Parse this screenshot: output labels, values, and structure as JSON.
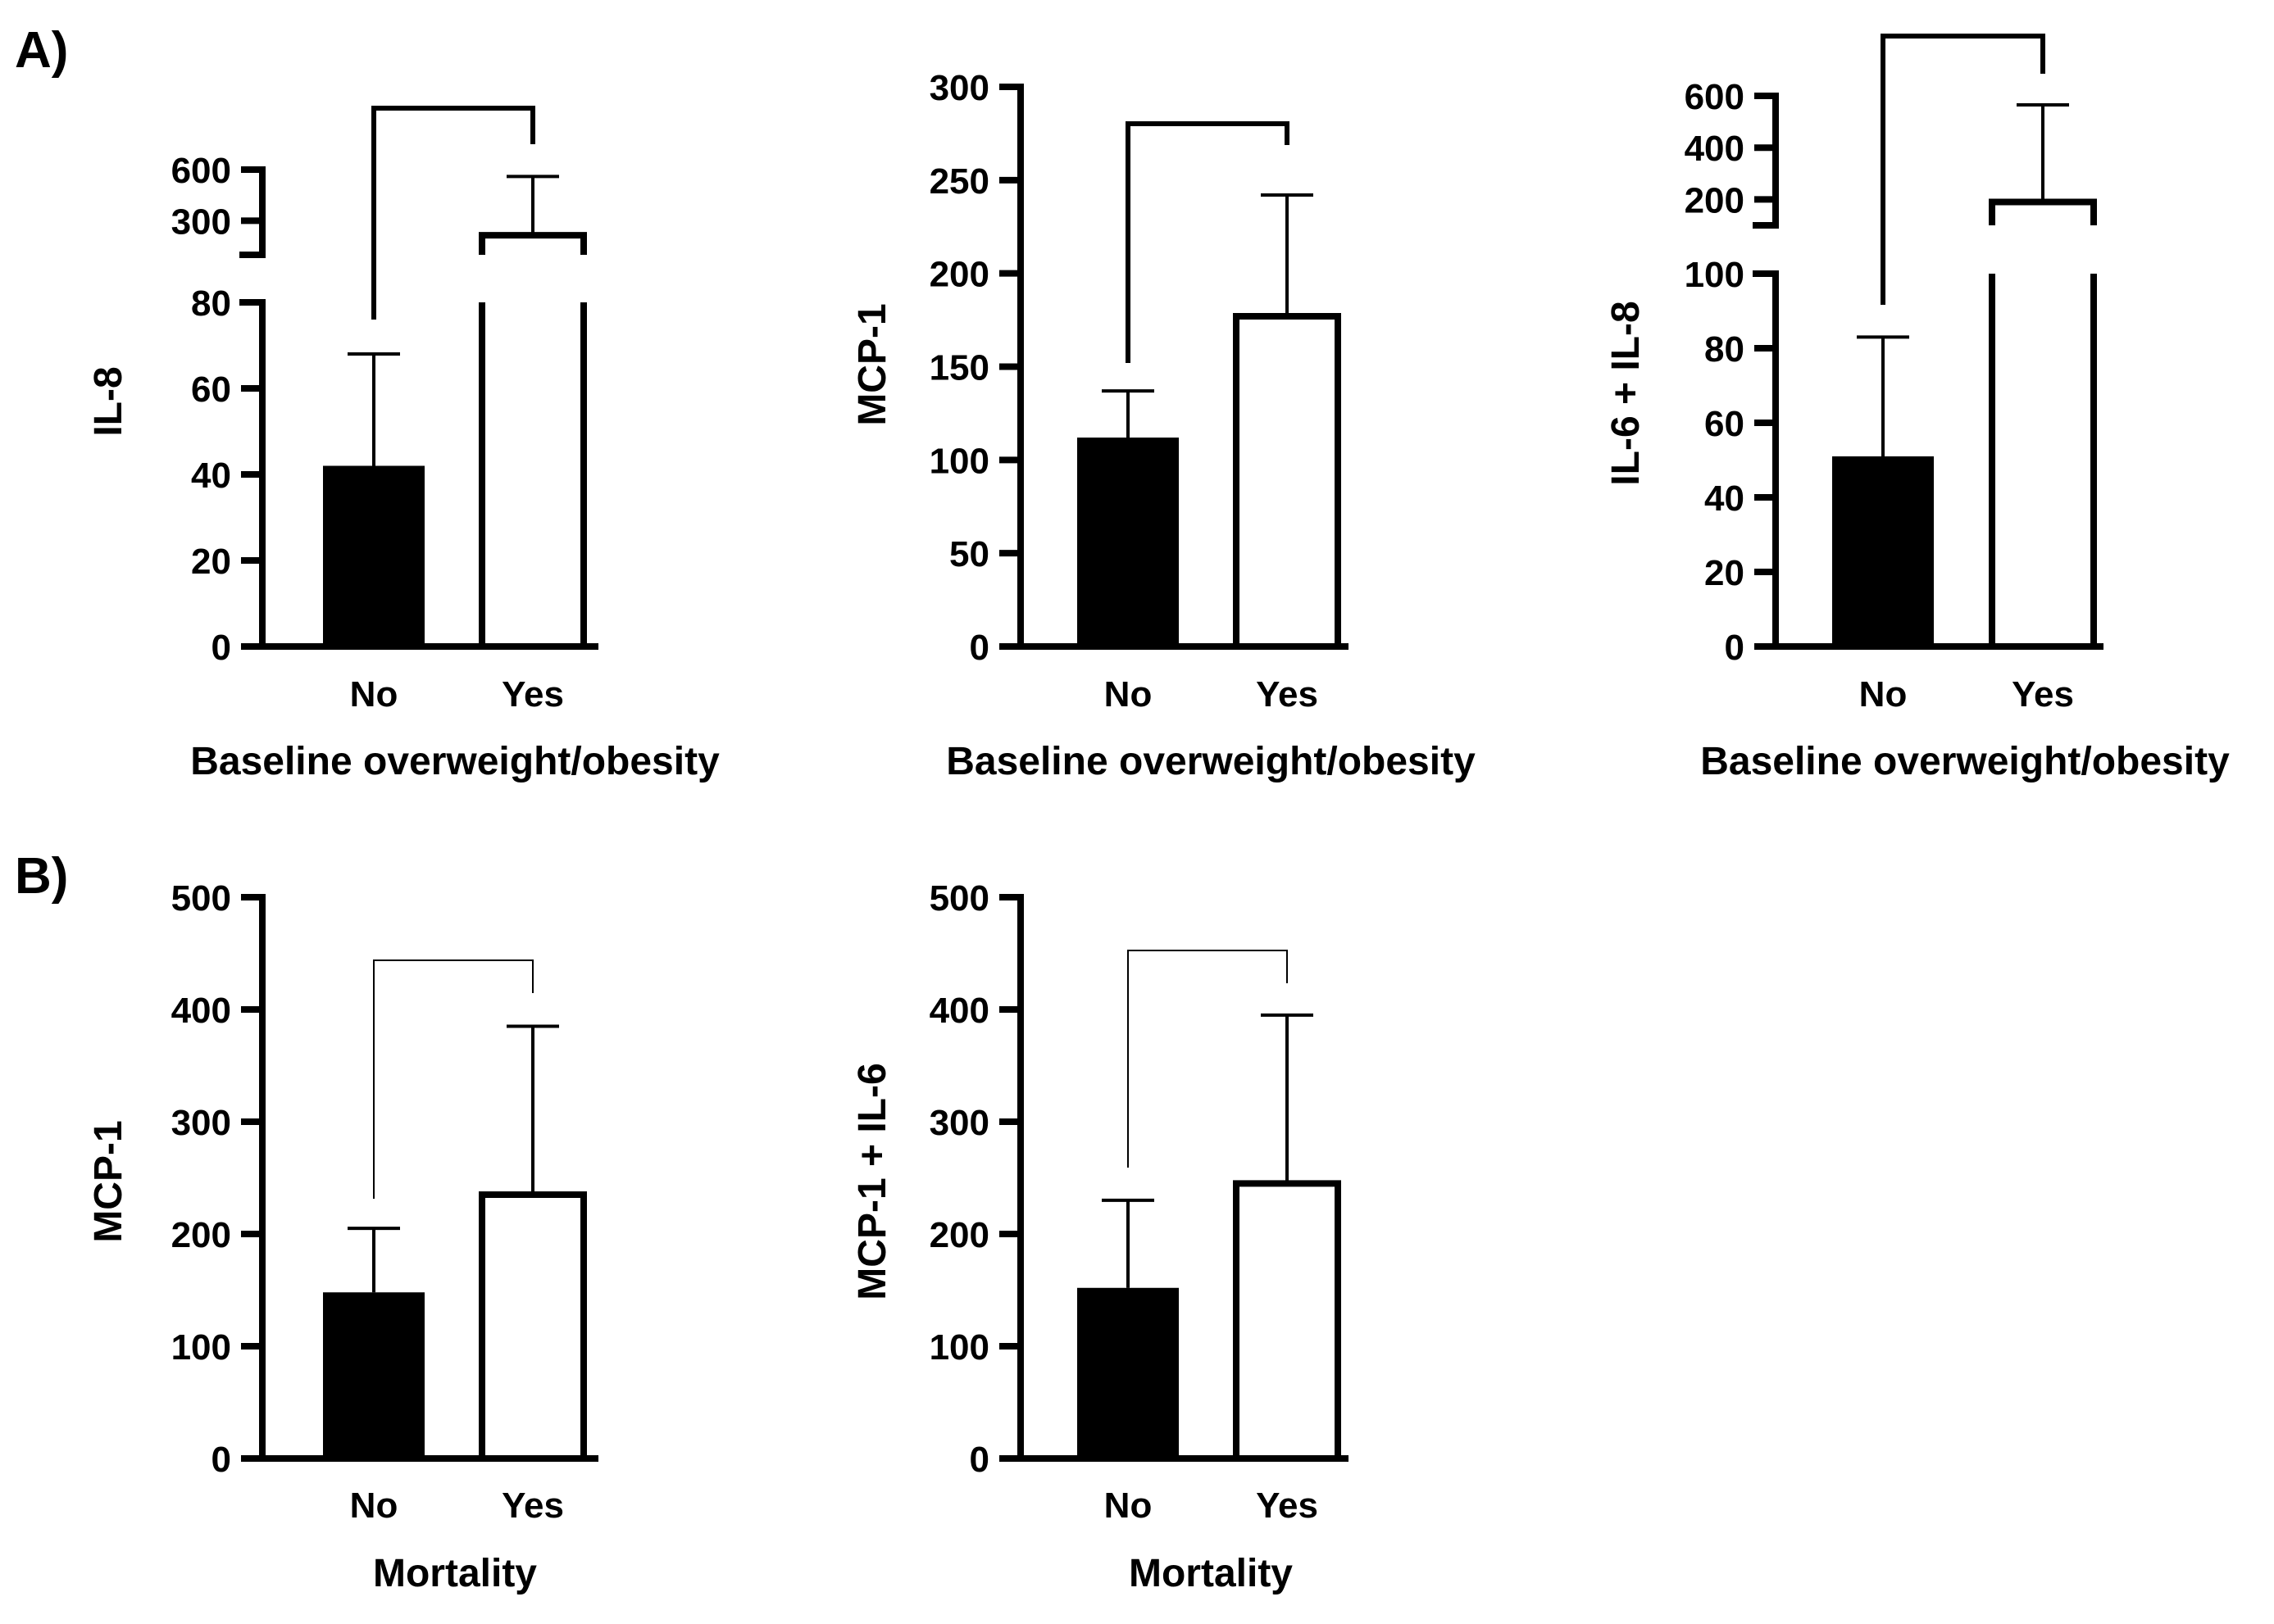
{
  "panel_labels": [
    "A)",
    "B)"
  ],
  "chart_data": [
    {
      "id": "a1",
      "type": "bar",
      "panel": "A)",
      "categories": [
        "No",
        "Yes"
      ],
      "values": [
        42,
        215
      ],
      "errors_upper": [
        68,
        560
      ],
      "fills": [
        "#000000",
        "#ffffff"
      ],
      "xlabel": "Baseline overweight/obesity",
      "ylabel": "IL-8",
      "broken_axis": true,
      "lower_segment": {
        "ylim": [
          0,
          80
        ],
        "ticks": [
          "0",
          "20",
          "40",
          "60",
          "80"
        ]
      },
      "upper_segment": {
        "ylim": [
          100,
          600
        ],
        "ticks": [
          "300",
          "600"
        ]
      },
      "significance_bracket": true
    },
    {
      "id": "a2",
      "type": "bar",
      "panel": "A)",
      "categories": [
        "No",
        "Yes"
      ],
      "values": [
        112,
        177
      ],
      "errors_upper": [
        137,
        242
      ],
      "fills": [
        "#000000",
        "#ffffff"
      ],
      "xlabel": "Baseline overweight/obesity",
      "ylabel": "MCP-1",
      "ylim": [
        0,
        300
      ],
      "ticks": [
        "0",
        "50",
        "100",
        "150",
        "200",
        "250",
        "300"
      ],
      "significance_bracket": true
    },
    {
      "id": "a3",
      "type": "bar",
      "panel": "A)",
      "categories": [
        "No",
        "Yes"
      ],
      "values": [
        51,
        190
      ],
      "errors_upper": [
        83,
        565
      ],
      "fills": [
        "#000000",
        "#ffffff"
      ],
      "xlabel": "Baseline overweight/obesity",
      "ylabel": "IL-6 + IL-8",
      "broken_axis": true,
      "lower_segment": {
        "ylim": [
          0,
          100
        ],
        "ticks": [
          "0",
          "20",
          "40",
          "60",
          "80",
          "100"
        ]
      },
      "upper_segment": {
        "ylim": [
          100,
          600
        ],
        "ticks": [
          "200",
          "400",
          "600"
        ]
      },
      "significance_bracket": true
    },
    {
      "id": "b1",
      "type": "bar",
      "panel": "B)",
      "categories": [
        "No",
        "Yes"
      ],
      "values": [
        148,
        235
      ],
      "errors_upper": [
        205,
        385
      ],
      "fills": [
        "#000000",
        "#ffffff"
      ],
      "xlabel": "Mortality",
      "ylabel": "MCP-1",
      "ylim": [
        0,
        500
      ],
      "ticks": [
        "0",
        "100",
        "200",
        "300",
        "400",
        "500"
      ],
      "significance_bracket": true
    },
    {
      "id": "b2",
      "type": "bar",
      "panel": "B)",
      "categories": [
        "No",
        "Yes"
      ],
      "values": [
        152,
        245
      ],
      "errors_upper": [
        230,
        395
      ],
      "fills": [
        "#000000",
        "#ffffff"
      ],
      "xlabel": "Mortality",
      "ylabel": "MCP-1 + IL-6",
      "ylim": [
        0,
        500
      ],
      "ticks": [
        "0",
        "100",
        "200",
        "300",
        "400",
        "500"
      ],
      "significance_bracket": true
    }
  ]
}
